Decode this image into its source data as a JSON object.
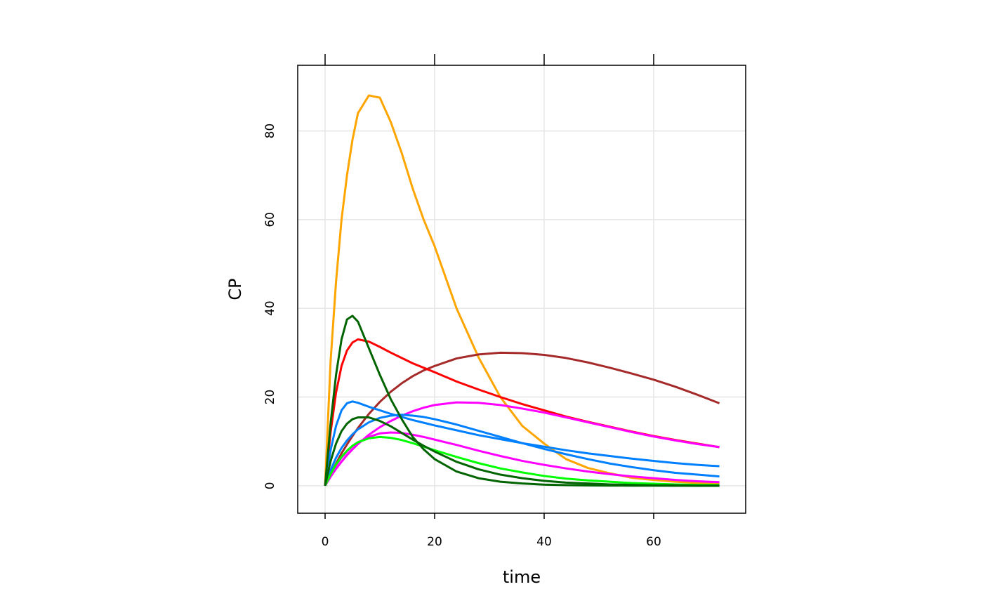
{
  "chart_data": {
    "type": "line",
    "x_label": "time",
    "y_label": "CP",
    "x": [
      0,
      1,
      2,
      3,
      4,
      5,
      6,
      8,
      10,
      12,
      14,
      16,
      18,
      20,
      24,
      28,
      32,
      36,
      40,
      44,
      48,
      52,
      56,
      60,
      64,
      68,
      72
    ],
    "series": [
      {
        "color": "#FFA500",
        "values": [
          0,
          28,
          46,
          60,
          70,
          78,
          84,
          88,
          87.5,
          82,
          75,
          67,
          60,
          54,
          40,
          29,
          20,
          13.5,
          9.5,
          6,
          4,
          2.8,
          1.8,
          1.3,
          0.9,
          0.6,
          0.4
        ]
      },
      {
        "color": "#A52A2A",
        "values": [
          0,
          2.6,
          5,
          7.3,
          9.3,
          11.2,
          13,
          16.2,
          18.9,
          21.2,
          23.1,
          24.7,
          26,
          27,
          28.7,
          29.6,
          30,
          29.9,
          29.5,
          28.8,
          27.8,
          26.6,
          25.3,
          23.9,
          22.3,
          20.5,
          18.6
        ]
      },
      {
        "color": "#FF0000",
        "values": [
          0,
          12,
          21,
          27,
          30.5,
          32.3,
          33,
          32.5,
          31.3,
          30,
          28.8,
          27.6,
          26.6,
          25.6,
          23.5,
          21.7,
          20,
          18.4,
          17,
          15.6,
          14.4,
          13.3,
          12.2,
          11.2,
          10.3,
          9.5,
          8.7
        ]
      },
      {
        "color": "#FF00FF",
        "values": [
          0,
          2,
          3.8,
          5.4,
          6.9,
          8.2,
          9.4,
          11.5,
          13.2,
          14.6,
          15.8,
          16.8,
          17.6,
          18.2,
          18.8,
          18.7,
          18.2,
          17.4,
          16.5,
          15.4,
          14.3,
          13.2,
          12.1,
          11.1,
          10.2,
          9.4,
          8.7
        ]
      },
      {
        "color": "#0080FF",
        "values": [
          0,
          8,
          13.5,
          17,
          18.6,
          19,
          18.7,
          17.8,
          17,
          16.2,
          15.5,
          14.8,
          14.2,
          13.6,
          12.5,
          11.4,
          10.5,
          9.6,
          8.8,
          8,
          7.3,
          6.7,
          6.1,
          5.6,
          5.1,
          4.7,
          4.4
        ]
      },
      {
        "color": "#0080FF",
        "values": [
          0,
          3.5,
          6.3,
          8.5,
          10.2,
          11.6,
          12.7,
          14.3,
          15.3,
          15.8,
          16,
          15.8,
          15.5,
          15,
          13.8,
          12.4,
          11,
          9.6,
          8.3,
          7.1,
          6,
          5,
          4.2,
          3.5,
          2.9,
          2.5,
          2.1
        ]
      },
      {
        "color": "#FF00FF",
        "values": [
          0,
          2.5,
          4.6,
          6.3,
          7.7,
          8.9,
          9.8,
          11,
          11.8,
          12,
          11.9,
          11.5,
          11,
          10.4,
          9.2,
          7.9,
          6.7,
          5.6,
          4.7,
          3.9,
          3.2,
          2.6,
          2.1,
          1.7,
          1.3,
          1,
          0.8
        ]
      },
      {
        "color": "#00FF00",
        "values": [
          0,
          2.6,
          4.8,
          6.5,
          7.9,
          9,
          9.8,
          10.7,
          11,
          10.8,
          10.3,
          9.6,
          8.8,
          8,
          6.5,
          5.1,
          3.9,
          3,
          2.2,
          1.6,
          1.2,
          0.9,
          0.6,
          0.45,
          0.3,
          0.2,
          0.15
        ]
      },
      {
        "color": "#006400",
        "values": [
          0,
          5.5,
          9.5,
          12.3,
          14,
          15,
          15.4,
          15.4,
          14.6,
          13.4,
          11.9,
          10.4,
          9,
          7.7,
          5.4,
          3.7,
          2.5,
          1.7,
          1.1,
          0.7,
          0.5,
          0.3,
          0.2,
          0.1,
          0.1,
          0,
          0
        ]
      },
      {
        "color": "#006400",
        "values": [
          0,
          14,
          25,
          33,
          37.5,
          38.3,
          37,
          31,
          25,
          19.5,
          15,
          11,
          8.2,
          6,
          3.2,
          1.7,
          0.9,
          0.5,
          0.25,
          0.13,
          0.07,
          0.04,
          0.02,
          0.01,
          0,
          0,
          0
        ]
      }
    ],
    "xlim": [
      -5,
      76.8
    ],
    "ylim": [
      -6.2,
      94.8
    ],
    "xticks": [
      0,
      20,
      40,
      60
    ],
    "yticks": [
      0,
      20,
      40,
      60,
      80
    ],
    "grid": true
  }
}
